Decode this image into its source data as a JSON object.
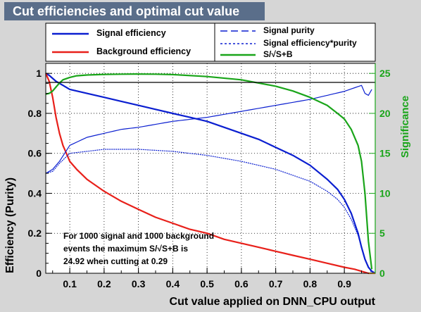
{
  "title": "Cut efficiencies and optimal cut value",
  "colors": {
    "signal": "#0b1fd0",
    "background": "#e8201a",
    "significance": "#1aa51a",
    "header_bg": "#5a6e8a"
  },
  "legend": {
    "signal_eff": "Signal efficiency",
    "background_eff": "Background efficiency",
    "purity": "Signal purity",
    "eff_purity": "Signal efficiency*purity",
    "significance": "S/√S+B"
  },
  "note": {
    "line1": "For 1000 signal and 1000 background",
    "line2": "events the maximum S/√S+B is",
    "line3": "24.92 when cutting at  0.29"
  },
  "chart_data": {
    "type": "line",
    "title": "Cut efficiencies and optimal cut value",
    "xlabel": "Cut value applied on DNN_CPU output",
    "ylabel": "Efficiency (Purity)",
    "y2label": "Significance",
    "xlim": [
      0.03,
      0.99
    ],
    "ylim": [
      0,
      1.05
    ],
    "y2lim": [
      0,
      26.25
    ],
    "xticks": [
      "0.1",
      "0.2",
      "0.3",
      "0.4",
      "0.5",
      "0.6",
      "0.7",
      "0.8",
      "0.9"
    ],
    "yticks": [
      "0",
      "0.2",
      "0.4",
      "0.6",
      "0.8",
      "1"
    ],
    "y2ticks": [
      "0",
      "5",
      "10",
      "15",
      "20",
      "25"
    ],
    "grid": true,
    "legend_position": "top",
    "series": [
      {
        "name": "Signal efficiency",
        "axis": "left",
        "style": "solid",
        "x": [
          0.03,
          0.04,
          0.06,
          0.08,
          0.1,
          0.15,
          0.2,
          0.25,
          0.3,
          0.35,
          0.4,
          0.45,
          0.5,
          0.55,
          0.6,
          0.65,
          0.7,
          0.75,
          0.8,
          0.85,
          0.88,
          0.9,
          0.92,
          0.94,
          0.95,
          0.96,
          0.97,
          0.98,
          0.99
        ],
        "y": [
          1.0,
          0.99,
          0.96,
          0.94,
          0.92,
          0.9,
          0.88,
          0.86,
          0.84,
          0.82,
          0.8,
          0.78,
          0.76,
          0.73,
          0.7,
          0.67,
          0.63,
          0.59,
          0.54,
          0.47,
          0.42,
          0.37,
          0.3,
          0.2,
          0.13,
          0.07,
          0.03,
          0.01,
          0.0
        ]
      },
      {
        "name": "Background efficiency",
        "axis": "left",
        "style": "solid",
        "x": [
          0.03,
          0.04,
          0.05,
          0.06,
          0.07,
          0.08,
          0.09,
          0.1,
          0.12,
          0.15,
          0.2,
          0.25,
          0.3,
          0.35,
          0.4,
          0.45,
          0.5,
          0.55,
          0.6,
          0.65,
          0.7,
          0.75,
          0.8,
          0.85,
          0.9,
          0.93,
          0.95,
          0.97,
          0.99
        ],
        "y": [
          1.0,
          0.96,
          0.88,
          0.78,
          0.7,
          0.64,
          0.6,
          0.56,
          0.52,
          0.47,
          0.41,
          0.36,
          0.32,
          0.28,
          0.25,
          0.22,
          0.2,
          0.17,
          0.15,
          0.13,
          0.11,
          0.09,
          0.07,
          0.05,
          0.03,
          0.02,
          0.01,
          0.0,
          0.0
        ]
      },
      {
        "name": "Signal purity",
        "axis": "left",
        "style": "dashed",
        "x": [
          0.03,
          0.05,
          0.07,
          0.1,
          0.15,
          0.2,
          0.25,
          0.3,
          0.4,
          0.5,
          0.6,
          0.7,
          0.8,
          0.85,
          0.9,
          0.95,
          0.96,
          0.97,
          0.98
        ],
        "y": [
          0.5,
          0.52,
          0.56,
          0.64,
          0.68,
          0.7,
          0.72,
          0.73,
          0.76,
          0.78,
          0.81,
          0.84,
          0.87,
          0.89,
          0.91,
          0.94,
          0.9,
          0.89,
          0.92
        ]
      },
      {
        "name": "Signal efficiency*purity",
        "axis": "left",
        "style": "dotted",
        "x": [
          0.03,
          0.05,
          0.07,
          0.1,
          0.15,
          0.2,
          0.25,
          0.3,
          0.4,
          0.5,
          0.6,
          0.7,
          0.75,
          0.8,
          0.85,
          0.88,
          0.9,
          0.92,
          0.94,
          0.96,
          0.98
        ],
        "y": [
          0.5,
          0.51,
          0.55,
          0.6,
          0.61,
          0.62,
          0.62,
          0.62,
          0.61,
          0.59,
          0.56,
          0.52,
          0.49,
          0.46,
          0.41,
          0.37,
          0.33,
          0.27,
          0.19,
          0.07,
          0.0
        ]
      },
      {
        "name": "S/√S+B",
        "axis": "right",
        "style": "solid",
        "x": [
          0.03,
          0.04,
          0.05,
          0.06,
          0.07,
          0.08,
          0.1,
          0.12,
          0.15,
          0.2,
          0.25,
          0.29,
          0.35,
          0.4,
          0.5,
          0.6,
          0.7,
          0.75,
          0.8,
          0.85,
          0.88,
          0.9,
          0.92,
          0.94,
          0.95,
          0.96,
          0.97,
          0.98
        ],
        "y": [
          22.4,
          22.5,
          22.8,
          23.3,
          23.8,
          24.2,
          24.5,
          24.7,
          24.8,
          24.88,
          24.9,
          24.92,
          24.9,
          24.85,
          24.6,
          24.2,
          23.4,
          22.8,
          22.0,
          21.0,
          20.0,
          19.3,
          18.0,
          16.0,
          14.0,
          10.0,
          4.0,
          0.5
        ]
      }
    ]
  }
}
